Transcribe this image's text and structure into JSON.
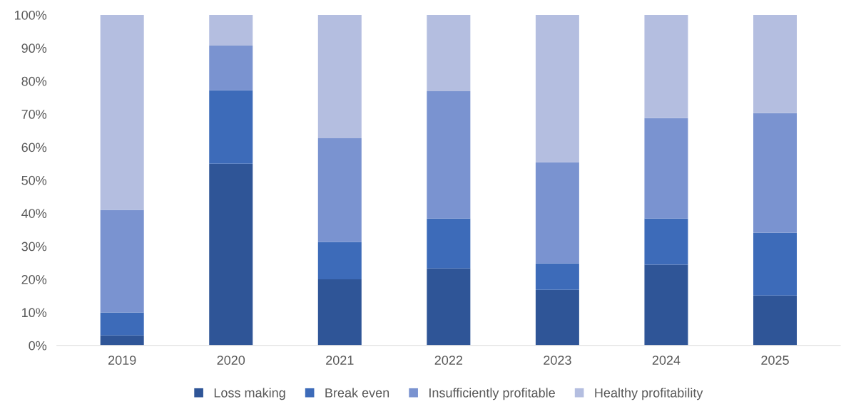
{
  "chart_data": {
    "type": "bar",
    "stacked": true,
    "categories": [
      "2019",
      "2020",
      "2021",
      "2022",
      "2023",
      "2024",
      "2025"
    ],
    "series": [
      {
        "name": "Loss making",
        "color": "#2f5597",
        "values": [
          3,
          55,
          20,
          23.3,
          16.8,
          24.4,
          15.1
        ]
      },
      {
        "name": "Break even",
        "color": "#3d6bb9",
        "values": [
          7,
          22.2,
          11.3,
          15.1,
          8,
          14,
          19
        ]
      },
      {
        "name": "Insufficiently profitable",
        "color": "#7a93d0",
        "values": [
          31,
          13.5,
          31.4,
          38.5,
          30.6,
          30.4,
          36.2
        ]
      },
      {
        "name": "Healthy profitability",
        "color": "#b4bee0",
        "values": [
          59,
          9.3,
          37.3,
          23.1,
          44.6,
          31.2,
          29.7
        ]
      }
    ],
    "ylim": [
      0,
      100
    ],
    "yticks": [
      {
        "value": 0,
        "label": "0%"
      },
      {
        "value": 10,
        "label": "10%"
      },
      {
        "value": 20,
        "label": "20%"
      },
      {
        "value": 30,
        "label": "30%"
      },
      {
        "value": 40,
        "label": "40%"
      },
      {
        "value": 50,
        "label": "50%"
      },
      {
        "value": 60,
        "label": "60%"
      },
      {
        "value": 70,
        "label": "70%"
      },
      {
        "value": 80,
        "label": "80%"
      },
      {
        "value": 90,
        "label": "90%"
      },
      {
        "value": 100,
        "label": "100%"
      }
    ],
    "legend": "bottom",
    "grid": false
  }
}
